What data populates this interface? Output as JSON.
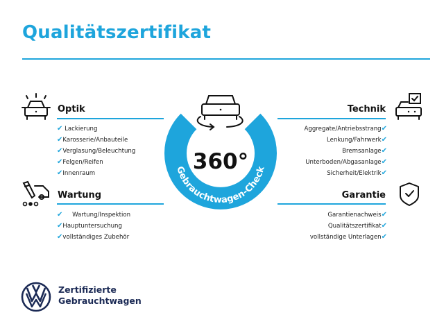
{
  "title": "Qualitätszertifikat",
  "accent_color": "#1ea5dc",
  "check_icon": "✔",
  "badge": {
    "value": "360°",
    "ring_text": "Gebrauchtwagen-Check"
  },
  "sections": {
    "optik": {
      "label": "Optik",
      "icon": "car-lights-icon",
      "items": [
        "Lackierung",
        "Karosserie/Anbauteile",
        "Verglasung/Beleuchtung",
        "Felgen/Reifen",
        "Innenraum"
      ]
    },
    "wartung": {
      "label": "Wartung",
      "icon": "service-van-icon",
      "items": [
        "Wartung/Inspektion",
        "Hauptuntersuchung",
        "vollständiges Zubehör"
      ]
    },
    "technik": {
      "label": "Technik",
      "icon": "car-checkbox-icon",
      "items": [
        "Aggregate/Antriebsstrang",
        "Lenkung/Fahrwerk",
        "Bremsanlage",
        "Unterboden/Abgasanlage",
        "Sicherheit/Elektrik"
      ]
    },
    "garantie": {
      "label": "Garantie",
      "icon": "shield-check-icon",
      "items": [
        "Garantienachweis",
        "Qualitätszertifikat",
        "vollständige Unterlagen"
      ]
    }
  },
  "footer": {
    "line1": "Zertifizierte",
    "line2": "Gebrauchtwagen"
  }
}
